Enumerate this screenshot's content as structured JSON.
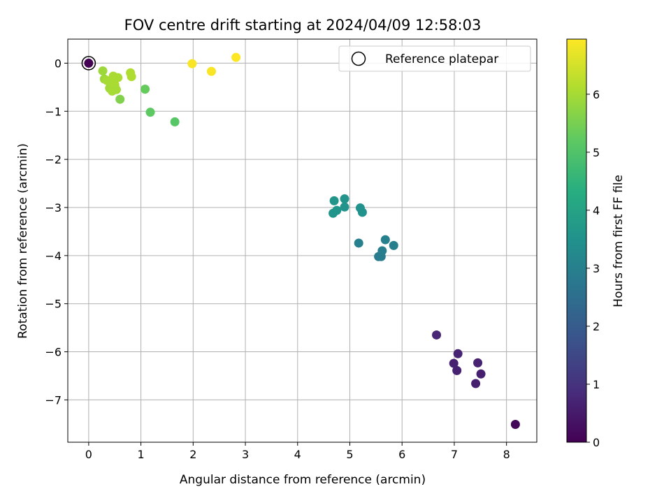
{
  "chart_data": {
    "type": "scatter",
    "title": "FOV centre drift starting at 2024/04/09 12:58:03",
    "xlabel": "Angular distance from reference (arcmin)",
    "ylabel": "Rotation from reference (arcmin)",
    "xlim": [
      -0.4,
      8.58
    ],
    "ylim": [
      -7.88,
      0.5
    ],
    "xticks": [
      0,
      1,
      2,
      3,
      4,
      5,
      6,
      7,
      8
    ],
    "yticks": [
      0,
      -1,
      -2,
      -3,
      -4,
      -5,
      -6,
      -7
    ],
    "grid": true,
    "legend": {
      "placement": "top-right",
      "entries": [
        "Reference platepar"
      ]
    },
    "reference_point": {
      "x": 0.0,
      "y": 0.0
    },
    "colorbar": {
      "label": "Hours from first FF file",
      "colormap": "viridis",
      "range": [
        0,
        6.95
      ],
      "ticks": [
        0,
        1,
        2,
        3,
        4,
        5,
        6
      ]
    },
    "points": [
      {
        "x": 0.0,
        "y": 0.0,
        "hours": 0.0
      },
      {
        "x": 0.27,
        "y": -0.16,
        "hours": 5.9
      },
      {
        "x": 0.3,
        "y": -0.33,
        "hours": 5.9
      },
      {
        "x": 0.35,
        "y": -0.36,
        "hours": 6.0
      },
      {
        "x": 0.4,
        "y": -0.52,
        "hours": 5.95
      },
      {
        "x": 0.43,
        "y": -0.4,
        "hours": 6.0
      },
      {
        "x": 0.45,
        "y": -0.58,
        "hours": 6.0
      },
      {
        "x": 0.47,
        "y": -0.27,
        "hours": 6.05
      },
      {
        "x": 0.5,
        "y": -0.45,
        "hours": 6.05
      },
      {
        "x": 0.53,
        "y": -0.55,
        "hours": 6.0
      },
      {
        "x": 0.56,
        "y": -0.3,
        "hours": 6.05
      },
      {
        "x": 0.6,
        "y": -0.75,
        "hours": 5.6
      },
      {
        "x": 0.8,
        "y": -0.2,
        "hours": 6.1
      },
      {
        "x": 0.82,
        "y": -0.28,
        "hours": 6.1
      },
      {
        "x": 1.08,
        "y": -0.54,
        "hours": 5.3
      },
      {
        "x": 1.18,
        "y": -1.02,
        "hours": 5.2
      },
      {
        "x": 1.65,
        "y": -1.22,
        "hours": 5.1
      },
      {
        "x": 1.98,
        "y": -0.01,
        "hours": 6.9
      },
      {
        "x": 2.35,
        "y": -0.17,
        "hours": 6.9
      },
      {
        "x": 2.82,
        "y": 0.12,
        "hours": 6.95
      },
      {
        "x": 4.68,
        "y": -3.12,
        "hours": 3.6
      },
      {
        "x": 4.7,
        "y": -2.86,
        "hours": 3.6
      },
      {
        "x": 4.75,
        "y": -3.06,
        "hours": 3.6
      },
      {
        "x": 4.9,
        "y": -2.82,
        "hours": 3.55
      },
      {
        "x": 4.9,
        "y": -2.99,
        "hours": 3.55
      },
      {
        "x": 5.17,
        "y": -3.74,
        "hours": 3.0
      },
      {
        "x": 5.2,
        "y": -3.01,
        "hours": 3.5
      },
      {
        "x": 5.24,
        "y": -3.1,
        "hours": 3.5
      },
      {
        "x": 5.55,
        "y": -4.02,
        "hours": 2.9
      },
      {
        "x": 5.6,
        "y": -4.02,
        "hours": 2.9
      },
      {
        "x": 5.62,
        "y": -3.9,
        "hours": 2.95
      },
      {
        "x": 5.68,
        "y": -3.67,
        "hours": 3.0
      },
      {
        "x": 5.84,
        "y": -3.79,
        "hours": 2.95
      },
      {
        "x": 6.66,
        "y": -5.65,
        "hours": 0.75
      },
      {
        "x": 6.99,
        "y": -6.24,
        "hours": 0.65
      },
      {
        "x": 7.05,
        "y": -6.39,
        "hours": 0.65
      },
      {
        "x": 7.07,
        "y": -6.04,
        "hours": 0.7
      },
      {
        "x": 7.41,
        "y": -6.66,
        "hours": 0.6
      },
      {
        "x": 7.45,
        "y": -6.23,
        "hours": 0.65
      },
      {
        "x": 7.51,
        "y": -6.46,
        "hours": 0.6
      },
      {
        "x": 8.17,
        "y": -7.51,
        "hours": 0.1
      }
    ]
  }
}
